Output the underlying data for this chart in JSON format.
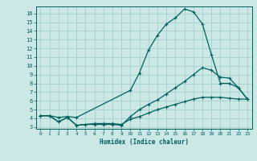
{
  "xlabel": "Humidex (Indice chaleur)",
  "bg_color": "#cce8e4",
  "line_color": "#006060",
  "grid_color": "#99ccc8",
  "xlim": [
    -0.5,
    23.5
  ],
  "ylim": [
    2.8,
    16.8
  ],
  "yticks": [
    3,
    4,
    5,
    6,
    7,
    8,
    9,
    10,
    11,
    12,
    13,
    14,
    15,
    16
  ],
  "xticks": [
    0,
    1,
    2,
    3,
    4,
    5,
    6,
    7,
    8,
    9,
    10,
    11,
    12,
    13,
    14,
    15,
    16,
    17,
    18,
    19,
    20,
    21,
    22,
    23
  ],
  "line1_x": [
    0,
    1,
    2,
    3,
    4,
    10,
    11,
    12,
    13,
    14,
    15,
    16,
    17,
    18,
    19,
    20,
    21,
    22,
    23
  ],
  "line1_y": [
    4.3,
    4.3,
    4.1,
    4.2,
    4.1,
    7.2,
    9.2,
    11.8,
    13.5,
    14.8,
    15.5,
    16.5,
    16.2,
    14.8,
    11.3,
    8.0,
    8.0,
    7.5,
    6.2
  ],
  "line2_x": [
    0,
    1,
    2,
    3,
    4,
    5,
    6,
    7,
    8,
    9,
    10,
    11,
    12,
    13,
    14,
    15,
    16,
    17,
    18,
    19,
    20,
    21,
    22,
    23
  ],
  "line2_y": [
    4.3,
    4.3,
    3.6,
    4.1,
    3.2,
    3.3,
    3.3,
    3.3,
    3.3,
    3.2,
    4.2,
    5.0,
    5.6,
    6.1,
    6.8,
    7.5,
    8.2,
    9.0,
    9.8,
    9.5,
    8.7,
    8.6,
    7.5,
    6.2
  ],
  "line3_x": [
    0,
    1,
    2,
    3,
    4,
    5,
    6,
    7,
    8,
    9,
    10,
    11,
    12,
    13,
    14,
    15,
    16,
    17,
    18,
    19,
    20,
    21,
    22,
    23
  ],
  "line3_y": [
    4.3,
    4.3,
    3.6,
    4.1,
    3.2,
    3.3,
    3.4,
    3.4,
    3.4,
    3.3,
    3.9,
    4.2,
    4.6,
    5.0,
    5.3,
    5.6,
    5.9,
    6.2,
    6.4,
    6.4,
    6.4,
    6.3,
    6.2,
    6.2
  ],
  "marker": "+",
  "markersize": 3.5,
  "linewidth": 0.9
}
